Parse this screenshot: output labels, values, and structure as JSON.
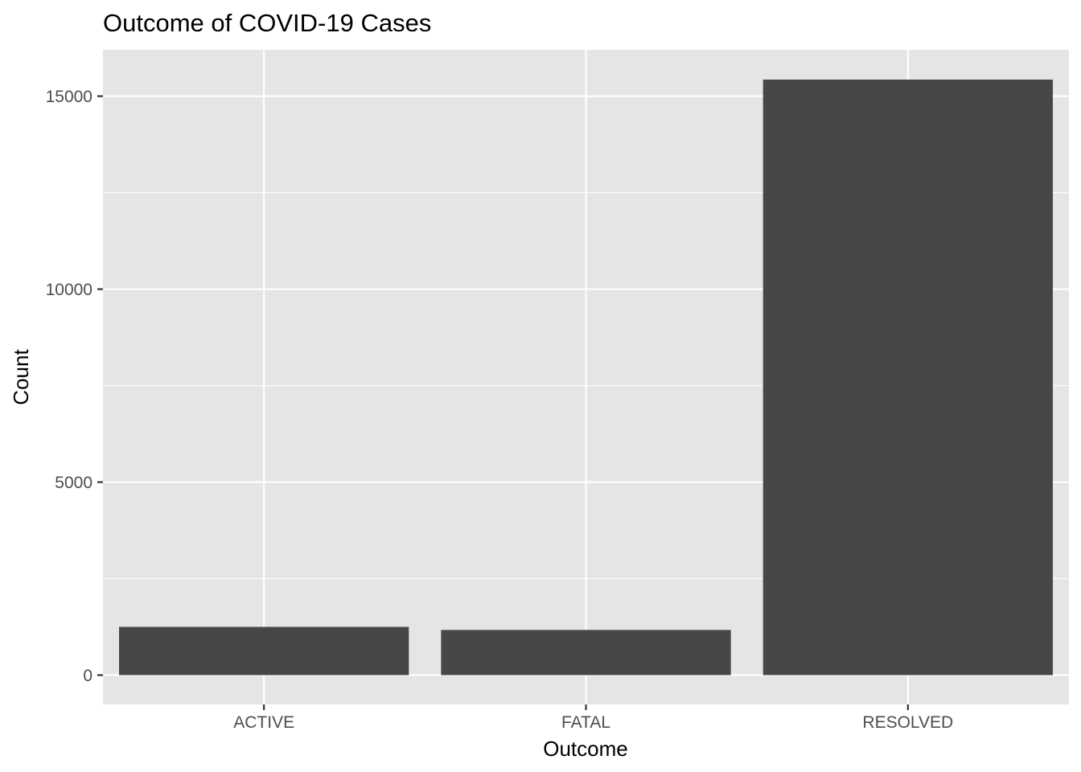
{
  "chart_data": {
    "type": "bar",
    "title": "Outcome of COVID-19 Cases",
    "xlabel": "Outcome",
    "ylabel": "Count",
    "categories": [
      "ACTIVE",
      "FATAL",
      "RESOLVED"
    ],
    "values": [
      1250,
      1170,
      15430
    ],
    "ylim": [
      -760,
      16200
    ],
    "y_ticks": [
      0,
      5000,
      10000,
      15000
    ],
    "y_tick_labels": [
      "0",
      "5000",
      "10000",
      "15000"
    ],
    "grid": true,
    "legend": "none",
    "colors": {
      "panel": "#e5e5e5",
      "grid": "#ffffff",
      "bar": "#474747",
      "tick": "#333333"
    }
  }
}
